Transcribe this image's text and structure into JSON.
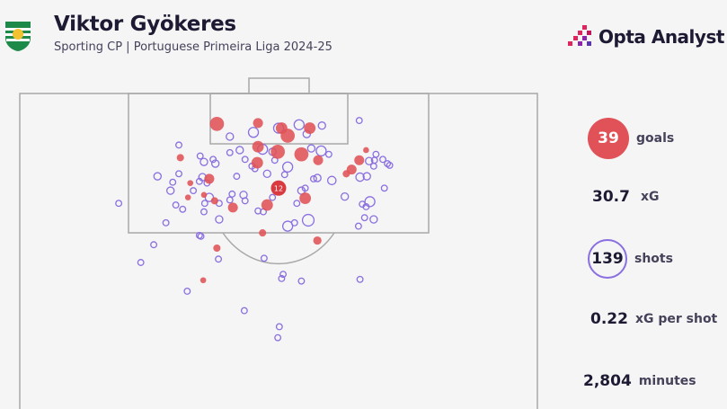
{
  "header": {
    "player": "Viktor Gyökeres",
    "subtitle": "Sporting CP | Portuguese Primeira Liga 2024-25",
    "club_crest_text": "SPORTING",
    "brand": "Opta Analyst"
  },
  "stats": {
    "goals_value": "39",
    "goals_label": "goals",
    "xg_value": "30.7",
    "xg_label": "xG",
    "shots_value": "139",
    "shots_label": "shots",
    "xg_per_shot_value": "0.22",
    "xg_per_shot_label": "xG per shot",
    "minutes_value": "2,804",
    "minutes_label": "minutes"
  },
  "colors": {
    "goal": "#e05257",
    "non_goal": "#8a6fe0",
    "pitch_lines": "#a8a8a8",
    "brand_accent": "#e0245e"
  },
  "chart_data": {
    "type": "scatter",
    "description_units": "metres from left touchline (x) and from goal line (y); marker size = xG",
    "penalty_marker": {
      "label": "12",
      "x": 34.0,
      "y": 11.2,
      "xg": 0.76,
      "outcome": "goal"
    },
    "fields": [
      "x",
      "y",
      "xg",
      "outcome"
    ],
    "shots": [
      [
        25.9,
        3.6,
        0.5,
        "goal"
      ],
      [
        31.3,
        3.5,
        0.2,
        "goal"
      ],
      [
        34.4,
        4.1,
        0.3,
        "goal"
      ],
      [
        35.2,
        5.0,
        0.5,
        "goal"
      ],
      [
        38.1,
        4.1,
        0.3,
        "goal"
      ],
      [
        31.3,
        6.3,
        0.3,
        "goal"
      ],
      [
        33.9,
        6.9,
        0.5,
        "goal"
      ],
      [
        37.0,
        7.2,
        0.5,
        "goal"
      ],
      [
        39.2,
        7.9,
        0.2,
        "goal"
      ],
      [
        31.2,
        8.2,
        0.3,
        "goal"
      ],
      [
        21.1,
        7.6,
        0.08,
        "goal"
      ],
      [
        24.9,
        10.1,
        0.2,
        "goal"
      ],
      [
        22.4,
        10.6,
        0.04,
        "goal"
      ],
      [
        22.1,
        12.3,
        0.04,
        "goal"
      ],
      [
        24.2,
        12.0,
        0.04,
        "goal"
      ],
      [
        25.6,
        12.7,
        0.08,
        "goal"
      ],
      [
        28.0,
        13.5,
        0.2,
        "goal"
      ],
      [
        32.5,
        13.2,
        0.3,
        "goal"
      ],
      [
        37.5,
        12.4,
        0.3,
        "goal"
      ],
      [
        45.5,
        6.7,
        0.04,
        "goal"
      ],
      [
        44.6,
        7.9,
        0.2,
        "goal"
      ],
      [
        43.6,
        9.0,
        0.2,
        "goal"
      ],
      [
        42.9,
        9.5,
        0.08,
        "goal"
      ],
      [
        31.9,
        16.5,
        0.08,
        "goal"
      ],
      [
        39.1,
        17.4,
        0.12,
        "goal"
      ],
      [
        25.9,
        18.3,
        0.08,
        "goal"
      ],
      [
        24.1,
        22.1,
        0.04,
        "goal"
      ],
      [
        44.6,
        3.2,
        0.04,
        "miss"
      ],
      [
        30.7,
        4.6,
        0.2,
        "miss"
      ],
      [
        27.6,
        5.1,
        0.08,
        "miss"
      ],
      [
        34.0,
        4.1,
        0.2,
        "miss"
      ],
      [
        36.7,
        3.7,
        0.2,
        "miss"
      ],
      [
        39.7,
        3.8,
        0.08,
        "miss"
      ],
      [
        37.7,
        4.8,
        0.08,
        "miss"
      ],
      [
        20.9,
        6.1,
        0.04,
        "miss"
      ],
      [
        31.9,
        6.6,
        0.2,
        "miss"
      ],
      [
        28.9,
        6.7,
        0.08,
        "miss"
      ],
      [
        27.6,
        7.0,
        0.04,
        "miss"
      ],
      [
        33.2,
        6.9,
        0.08,
        "miss"
      ],
      [
        38.3,
        6.5,
        0.08,
        "miss"
      ],
      [
        39.6,
        6.8,
        0.2,
        "miss"
      ],
      [
        40.6,
        7.2,
        0.04,
        "miss"
      ],
      [
        23.7,
        7.4,
        0.04,
        "miss"
      ],
      [
        24.2,
        8.1,
        0.08,
        "miss"
      ],
      [
        25.7,
        8.3,
        0.08,
        "miss"
      ],
      [
        25.4,
        7.8,
        0.04,
        "miss"
      ],
      [
        29.6,
        7.8,
        0.04,
        "miss"
      ],
      [
        33.5,
        7.9,
        0.04,
        "miss"
      ],
      [
        35.2,
        8.7,
        0.2,
        "miss"
      ],
      [
        32.5,
        9.5,
        0.08,
        "miss"
      ],
      [
        30.5,
        8.6,
        0.04,
        "miss"
      ],
      [
        30.9,
        8.9,
        0.04,
        "miss"
      ],
      [
        34.8,
        9.6,
        0.04,
        "miss"
      ],
      [
        28.5,
        9.8,
        0.04,
        "miss"
      ],
      [
        20.9,
        9.5,
        0.04,
        "miss"
      ],
      [
        18.1,
        9.8,
        0.08,
        "miss"
      ],
      [
        20.1,
        10.5,
        0.04,
        "miss"
      ],
      [
        24.0,
        9.9,
        0.08,
        "miss"
      ],
      [
        23.6,
        10.4,
        0.04,
        "miss"
      ],
      [
        24.6,
        10.6,
        0.04,
        "miss"
      ],
      [
        19.8,
        11.5,
        0.08,
        "miss"
      ],
      [
        22.8,
        11.5,
        0.04,
        "miss"
      ],
      [
        39.1,
        10.0,
        0.08,
        "miss"
      ],
      [
        38.6,
        10.1,
        0.04,
        "miss"
      ],
      [
        41.0,
        10.3,
        0.12,
        "miss"
      ],
      [
        37.0,
        11.5,
        0.08,
        "miss"
      ],
      [
        37.5,
        11.2,
        0.04,
        "miss"
      ],
      [
        27.9,
        11.9,
        0.04,
        "miss"
      ],
      [
        29.4,
        12.0,
        0.08,
        "miss"
      ],
      [
        29.6,
        12.7,
        0.04,
        "miss"
      ],
      [
        27.6,
        12.6,
        0.04,
        "miss"
      ],
      [
        24.9,
        12.3,
        0.12,
        "miss"
      ],
      [
        24.3,
        13.0,
        0.04,
        "miss"
      ],
      [
        26.2,
        13.0,
        0.04,
        "miss"
      ],
      [
        33.2,
        12.3,
        0.04,
        "miss"
      ],
      [
        36.4,
        13.0,
        0.04,
        "miss"
      ],
      [
        20.5,
        13.2,
        0.04,
        "miss"
      ],
      [
        21.4,
        13.7,
        0.04,
        "miss"
      ],
      [
        24.2,
        14.0,
        0.04,
        "miss"
      ],
      [
        31.3,
        13.9,
        0.04,
        "miss"
      ],
      [
        32.0,
        14.0,
        0.04,
        "miss"
      ],
      [
        26.2,
        14.9,
        0.08,
        "miss"
      ],
      [
        19.2,
        15.3,
        0.04,
        "miss"
      ],
      [
        35.2,
        15.7,
        0.2,
        "miss"
      ],
      [
        36.1,
        15.3,
        0.04,
        "miss"
      ],
      [
        37.9,
        15.0,
        0.3,
        "miss"
      ],
      [
        42.7,
        12.2,
        0.08,
        "miss"
      ],
      [
        46.0,
        12.8,
        0.2,
        "miss"
      ],
      [
        45.0,
        13.1,
        0.04,
        "miss"
      ],
      [
        45.5,
        13.4,
        0.04,
        "miss"
      ],
      [
        45.3,
        14.7,
        0.04,
        "miss"
      ],
      [
        46.5,
        14.9,
        0.08,
        "miss"
      ],
      [
        44.5,
        15.7,
        0.04,
        "miss"
      ],
      [
        44.7,
        9.9,
        0.12,
        "miss"
      ],
      [
        45.6,
        9.8,
        0.08,
        "miss"
      ],
      [
        45.9,
        8.0,
        0.08,
        "miss"
      ],
      [
        46.8,
        7.2,
        0.04,
        "miss"
      ],
      [
        46.6,
        7.9,
        0.04,
        "miss"
      ],
      [
        46.5,
        8.6,
        0.04,
        "miss"
      ],
      [
        47.7,
        7.8,
        0.04,
        "miss"
      ],
      [
        48.3,
        8.3,
        0.04,
        "miss"
      ],
      [
        48.6,
        8.5,
        0.04,
        "miss"
      ],
      [
        47.9,
        11.2,
        0.04,
        "miss"
      ],
      [
        23.8,
        16.9,
        0.04,
        "miss"
      ],
      [
        17.6,
        17.9,
        0.04,
        "miss"
      ],
      [
        13.0,
        13.0,
        0.04,
        "miss"
      ],
      [
        15.9,
        20.0,
        0.04,
        "miss"
      ],
      [
        22.0,
        23.4,
        0.04,
        "miss"
      ],
      [
        23.6,
        16.8,
        0.04,
        "miss"
      ],
      [
        26.1,
        19.6,
        0.04,
        "miss"
      ],
      [
        29.5,
        25.7,
        0.04,
        "miss"
      ],
      [
        32.1,
        19.5,
        0.04,
        "miss"
      ],
      [
        34.1,
        27.6,
        0.04,
        "miss"
      ],
      [
        33.9,
        28.9,
        0.04,
        "miss"
      ],
      [
        34.6,
        21.4,
        0.04,
        "miss"
      ],
      [
        34.4,
        21.9,
        0.04,
        "miss"
      ],
      [
        37.0,
        22.2,
        0.04,
        "miss"
      ],
      [
        44.7,
        22.0,
        0.04,
        "miss"
      ]
    ]
  }
}
